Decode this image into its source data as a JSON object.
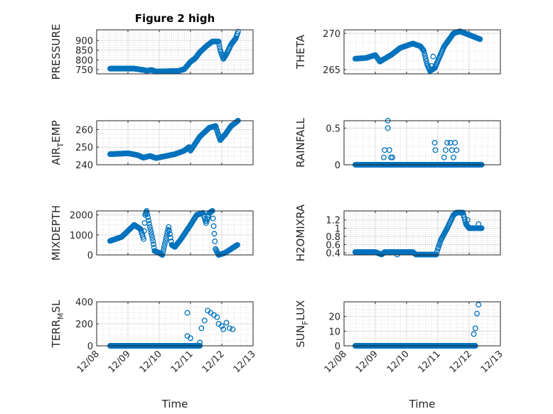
{
  "title": "Figure 2 high",
  "chart_data": [
    {
      "type": "scatter",
      "panel": "left",
      "row": 0,
      "ylabel": "PRESSURE",
      "ylim": [
        728,
        955
      ],
      "yticks": [
        750,
        800,
        850,
        900
      ],
      "xlabel": "",
      "series": [
        [
          0.43,
          755
        ],
        [
          1.2,
          755
        ],
        [
          1.5,
          748
        ],
        [
          1.6,
          744
        ],
        [
          1.75,
          748
        ],
        [
          1.9,
          740
        ],
        [
          2.6,
          743
        ],
        [
          2.8,
          752
        ],
        [
          3.0,
          790
        ],
        [
          3.15,
          808
        ],
        [
          3.3,
          840
        ],
        [
          3.5,
          870
        ],
        [
          3.7,
          895
        ],
        [
          3.9,
          895
        ],
        [
          3.95,
          850
        ],
        [
          4.05,
          805
        ],
        [
          4.15,
          830
        ],
        [
          4.3,
          880
        ],
        [
          4.45,
          912
        ],
        [
          4.52,
          945
        ]
      ],
      "extra": []
    },
    {
      "type": "scatter",
      "panel": "right",
      "row": 0,
      "ylabel": "THETA",
      "ylim": [
        264.4,
        270.5
      ],
      "yticks": [
        265,
        270
      ],
      "xlabel": "",
      "series": [
        [
          0.36,
          266.5
        ],
        [
          0.7,
          266.6
        ],
        [
          1.0,
          267
        ],
        [
          1.15,
          266.1
        ],
        [
          1.3,
          266.5
        ],
        [
          1.5,
          267
        ],
        [
          1.8,
          268
        ],
        [
          2.2,
          268.6
        ],
        [
          2.45,
          268.2
        ],
        [
          2.55,
          267.6
        ],
        [
          2.65,
          265.8
        ],
        [
          2.75,
          264.8
        ],
        [
          2.9,
          265.2
        ],
        [
          3.2,
          268.2
        ],
        [
          3.5,
          270
        ],
        [
          3.7,
          270.3
        ],
        [
          4.0,
          269.8
        ],
        [
          4.35,
          269.2
        ]
      ],
      "extra": [
        [
          2.85,
          266.8
        ],
        [
          2.8,
          265.5
        ]
      ]
    },
    {
      "type": "scatter",
      "panel": "left",
      "row": 1,
      "ylabel": "AIR_TEMP",
      "ylim": [
        240,
        265
      ],
      "yticks": [
        240,
        250,
        260
      ],
      "xlabel": "",
      "series": [
        [
          0.43,
          246
        ],
        [
          1.0,
          246.5
        ],
        [
          1.3,
          245.5
        ],
        [
          1.5,
          244
        ],
        [
          1.7,
          245
        ],
        [
          1.9,
          243.8
        ],
        [
          2.5,
          246
        ],
        [
          2.8,
          248
        ],
        [
          2.95,
          250
        ],
        [
          3.0,
          248
        ],
        [
          3.3,
          256
        ],
        [
          3.6,
          261
        ],
        [
          3.8,
          262
        ],
        [
          3.95,
          254
        ],
        [
          4.1,
          257
        ],
        [
          4.3,
          262
        ],
        [
          4.52,
          265
        ]
      ],
      "extra": []
    },
    {
      "type": "scatter",
      "panel": "right",
      "row": 1,
      "ylabel": "RAINFALL",
      "ylim": [
        0,
        0.6
      ],
      "yticks": [
        0,
        0.5
      ],
      "xlabel": "",
      "series": [
        [
          0.36,
          0
        ],
        [
          4.4,
          0
        ]
      ],
      "extra": [
        [
          1.27,
          0.1
        ],
        [
          1.3,
          0.2
        ],
        [
          1.4,
          0.6
        ],
        [
          1.4,
          0.5
        ],
        [
          1.45,
          0.2
        ],
        [
          1.5,
          0.1
        ],
        [
          1.55,
          0.1
        ],
        [
          2.9,
          0.3
        ],
        [
          2.92,
          0.2
        ],
        [
          3.2,
          0.1
        ],
        [
          3.25,
          0.2
        ],
        [
          3.3,
          0.3
        ],
        [
          3.4,
          0.3
        ],
        [
          3.45,
          0.2
        ],
        [
          3.5,
          0.1
        ],
        [
          3.55,
          0.3
        ],
        [
          3.6,
          0.2
        ]
      ]
    },
    {
      "type": "scatter",
      "panel": "left",
      "row": 2,
      "ylabel": "MIXDEPTH",
      "ylim": [
        0,
        2200
      ],
      "yticks": [
        0,
        1000,
        2000
      ],
      "xlabel": "",
      "series": [
        [
          0.43,
          700
        ],
        [
          0.8,
          900
        ],
        [
          1.0,
          1200
        ],
        [
          1.2,
          1500
        ],
        [
          1.4,
          1300
        ],
        [
          1.5,
          800
        ],
        [
          1.55,
          2000
        ],
        [
          1.6,
          2200
        ],
        [
          1.7,
          1400
        ],
        [
          1.8,
          700
        ],
        [
          1.85,
          200
        ],
        [
          2.0,
          100
        ],
        [
          2.1,
          0
        ],
        [
          2.2,
          700
        ],
        [
          2.3,
          1400
        ],
        [
          2.4,
          500
        ],
        [
          2.5,
          400
        ],
        [
          2.7,
          800
        ],
        [
          3.0,
          1500
        ],
        [
          3.2,
          2000
        ],
        [
          3.4,
          2100
        ],
        [
          3.5,
          1600
        ],
        [
          3.6,
          2100
        ],
        [
          3.7,
          2200
        ],
        [
          3.8,
          300
        ],
        [
          3.9,
          0
        ],
        [
          4.1,
          100
        ],
        [
          4.3,
          300
        ],
        [
          4.5,
          500
        ]
      ],
      "extra": []
    },
    {
      "type": "scatter",
      "panel": "right",
      "row": 2,
      "ylabel": "H2OMIXRA",
      "ylim": [
        0.35,
        1.42
      ],
      "yticks": [
        0.4,
        0.6,
        0.8,
        1,
        1.2
      ],
      "xlabel": "",
      "series": [
        [
          0.36,
          0.42
        ],
        [
          1.0,
          0.42
        ],
        [
          1.2,
          0.36
        ],
        [
          1.3,
          0.42
        ],
        [
          2.2,
          0.42
        ],
        [
          2.3,
          0.36
        ],
        [
          2.95,
          0.36
        ],
        [
          3.0,
          0.5
        ],
        [
          3.1,
          0.72
        ],
        [
          3.3,
          1.0
        ],
        [
          3.5,
          1.32
        ],
        [
          3.6,
          1.38
        ],
        [
          3.8,
          1.38
        ],
        [
          3.9,
          1.1
        ],
        [
          4.0,
          1.0
        ],
        [
          4.4,
          1.0
        ]
      ],
      "extra": [
        [
          1.7,
          0.36
        ],
        [
          3.95,
          1.2
        ],
        [
          4.3,
          1.1
        ]
      ]
    },
    {
      "type": "scatter",
      "panel": "left",
      "row": 3,
      "ylabel": "TERR_MSL",
      "ylim": [
        0,
        400
      ],
      "yticks": [
        0,
        200,
        400
      ],
      "xlabel": "Time",
      "series": [
        [
          0.43,
          0
        ],
        [
          3.3,
          0
        ]
      ],
      "extra": [
        [
          2.9,
          300
        ],
        [
          2.9,
          90
        ],
        [
          3.0,
          70
        ],
        [
          3.3,
          30
        ],
        [
          3.35,
          160
        ],
        [
          3.45,
          230
        ],
        [
          3.55,
          320
        ],
        [
          3.65,
          300
        ],
        [
          3.75,
          280
        ],
        [
          3.85,
          260
        ],
        [
          3.9,
          200
        ],
        [
          4.0,
          180
        ],
        [
          4.05,
          150
        ],
        [
          4.15,
          210
        ],
        [
          4.25,
          160
        ],
        [
          4.35,
          150
        ]
      ]
    },
    {
      "type": "scatter",
      "panel": "right",
      "row": 3,
      "ylabel": "SUN_FLUX",
      "ylim": [
        0,
        30
      ],
      "yticks": [
        0,
        10,
        20
      ],
      "xlabel": "Time",
      "series": [
        [
          0.36,
          0
        ],
        [
          4.2,
          0
        ]
      ],
      "extra": [
        [
          4.15,
          8
        ],
        [
          4.2,
          12
        ],
        [
          4.25,
          22
        ],
        [
          4.3,
          28
        ]
      ]
    }
  ],
  "xticks": [
    "12/08",
    "12/09",
    "12/10",
    "12/11",
    "12/12",
    "12/13"
  ],
  "colors": {
    "marker": "#0072BD",
    "axis": "#262626",
    "grid": "#dcdcdc"
  }
}
